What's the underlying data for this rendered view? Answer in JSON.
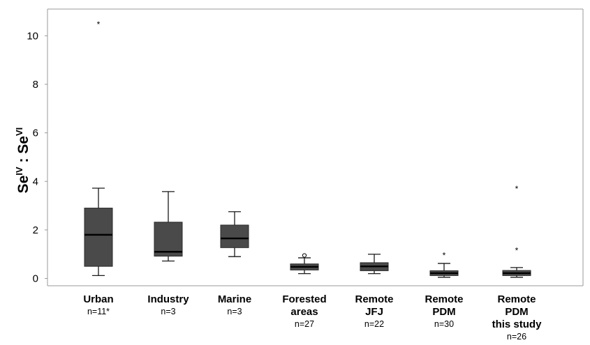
{
  "chart_data": {
    "type": "box",
    "ylabel": {
      "base1": "Se",
      "sup1": "IV",
      "sep": " : ",
      "base2": "Se",
      "sup2": "VI"
    },
    "ylim": [
      -0.3,
      11.1
    ],
    "yticks": [
      0,
      2,
      4,
      6,
      8,
      10
    ],
    "grid": false,
    "colors": {
      "box": "#4a4a4a",
      "median": "#000000",
      "whisker": "#1a1a1a",
      "axis": "#999999"
    },
    "categories": [
      {
        "lines": [
          "Urban"
        ],
        "n": "n=11*",
        "q1": 0.5,
        "median": 1.8,
        "q3": 2.9,
        "whisker_low": 0.12,
        "whisker_high": 3.72,
        "outliers": [
          {
            "value": 10.5,
            "marker": "star"
          }
        ]
      },
      {
        "lines": [
          "Industry"
        ],
        "n": "n=3",
        "q1": 0.92,
        "median": 1.1,
        "q3": 2.32,
        "whisker_low": 0.72,
        "whisker_high": 3.58,
        "outliers": []
      },
      {
        "lines": [
          "Marine"
        ],
        "n": "n=3",
        "q1": 1.27,
        "median": 1.65,
        "q3": 2.2,
        "whisker_low": 0.9,
        "whisker_high": 2.75,
        "outliers": []
      },
      {
        "lines": [
          "Forested",
          "areas"
        ],
        "n": "n=27",
        "q1": 0.35,
        "median": 0.48,
        "q3": 0.6,
        "whisker_low": 0.2,
        "whisker_high": 0.85,
        "outliers": [
          {
            "value": 0.95,
            "marker": "circle"
          }
        ]
      },
      {
        "lines": [
          "Remote",
          "JFJ"
        ],
        "n": "n=22",
        "q1": 0.32,
        "median": 0.5,
        "q3": 0.65,
        "whisker_low": 0.2,
        "whisker_high": 1.0,
        "outliers": []
      },
      {
        "lines": [
          "Remote",
          "PDM"
        ],
        "n": "n=30",
        "q1": 0.12,
        "median": 0.22,
        "q3": 0.32,
        "whisker_low": 0.05,
        "whisker_high": 0.62,
        "outliers": [
          {
            "value": 0.98,
            "marker": "star"
          }
        ]
      },
      {
        "lines": [
          "Remote",
          "PDM",
          "this study"
        ],
        "n": "n=26",
        "q1": 0.12,
        "median": 0.22,
        "q3": 0.33,
        "whisker_low": 0.05,
        "whisker_high": 0.45,
        "outliers": [
          {
            "value": 1.18,
            "marker": "star"
          },
          {
            "value": 3.72,
            "marker": "star"
          }
        ]
      }
    ]
  }
}
